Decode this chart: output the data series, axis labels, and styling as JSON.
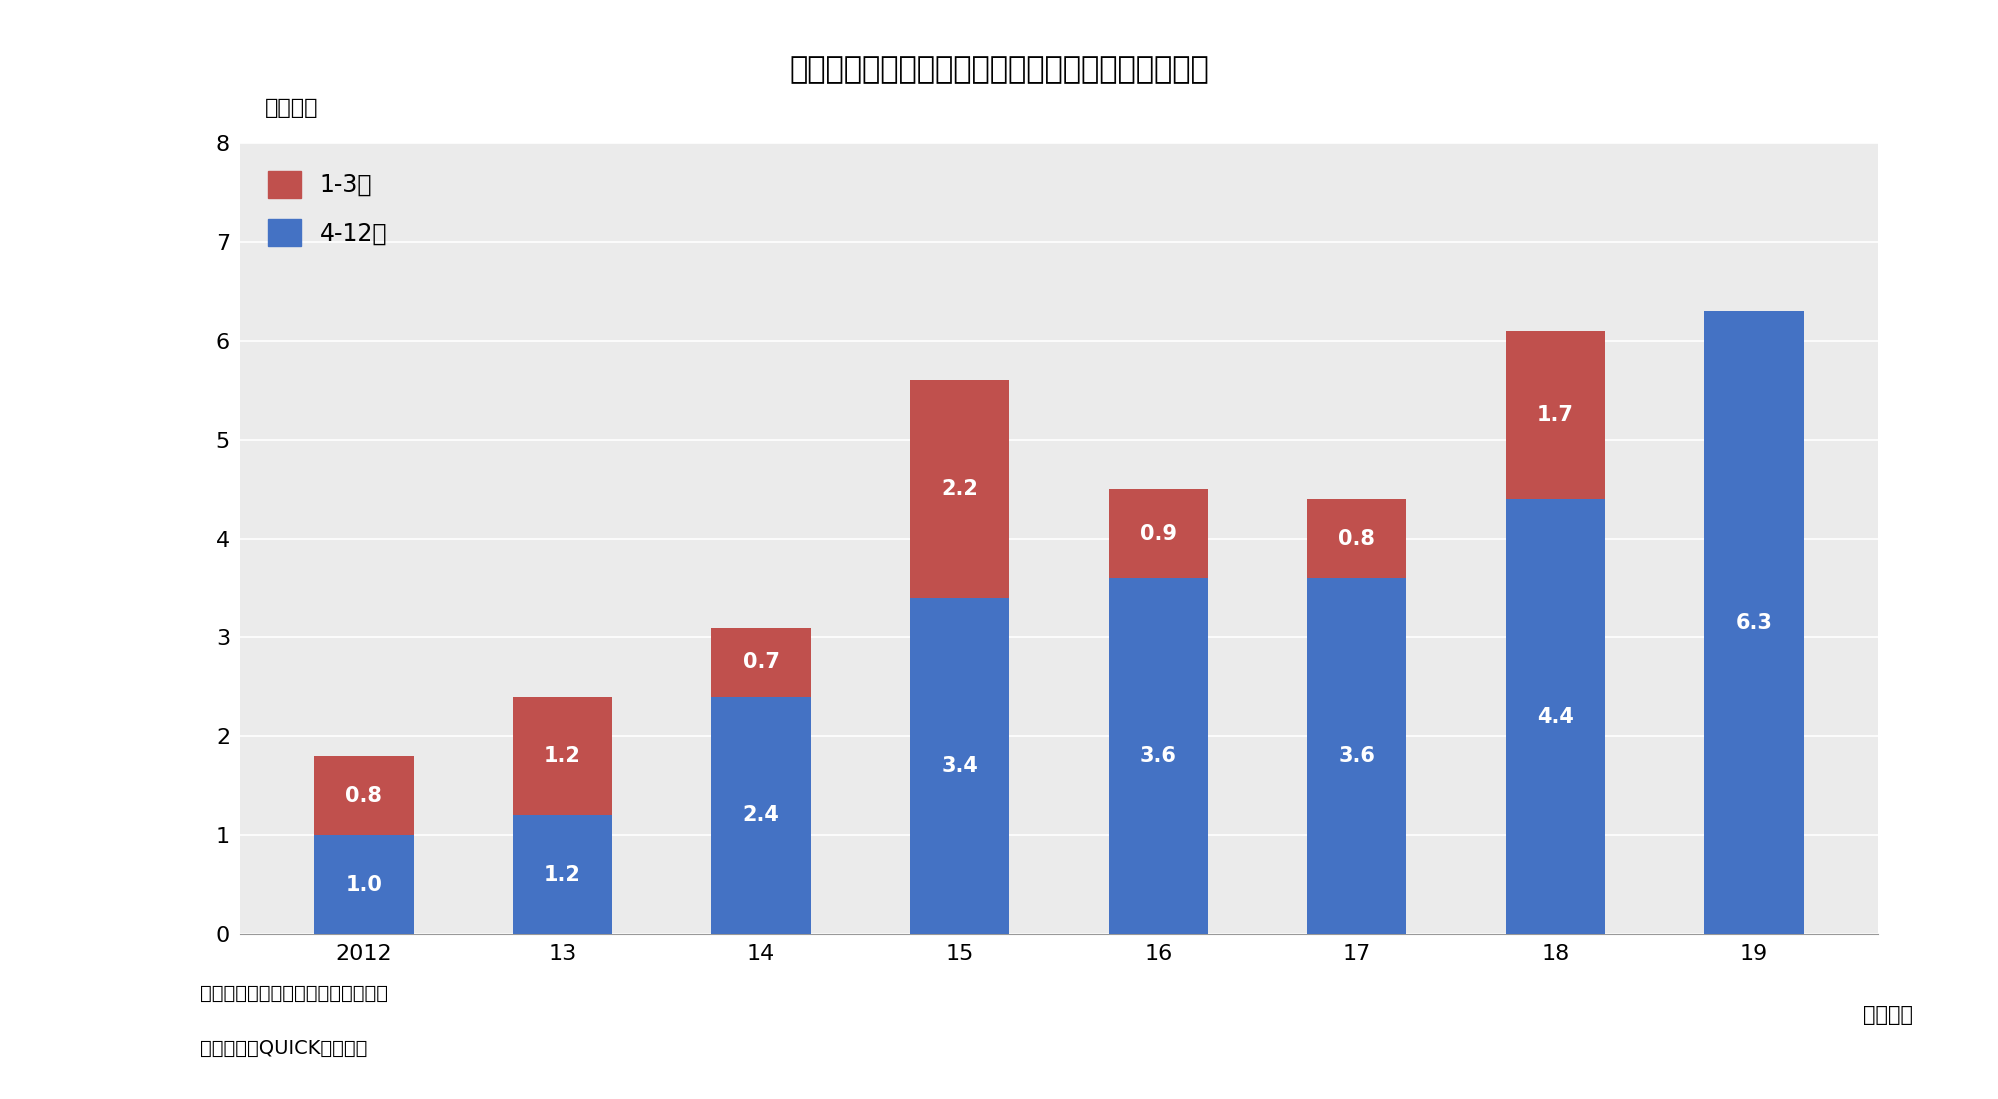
{
  "title": "》図表１》上場企楮の自社株買いが過去最高を更新",
  "ylabel": "（兆円）",
  "xlabel_suffix": "（年度）",
  "categories": [
    "2012",
    "13",
    "14",
    "15",
    "16",
    "17",
    "18",
    "19"
  ],
  "blue_values": [
    1.0,
    1.2,
    2.4,
    3.4,
    3.6,
    3.6,
    4.4,
    6.3
  ],
  "red_values": [
    0.8,
    1.2,
    0.7,
    2.2,
    0.9,
    0.8,
    1.7,
    0.0
  ],
  "blue_labels": [
    "1.0",
    "1.2",
    "2.4",
    "3.4",
    "3.6",
    "3.6",
    "4.4",
    "6.3"
  ],
  "red_labels": [
    "0.8",
    "1.2",
    "0.7",
    "2.2",
    "0.9",
    "0.8",
    "1.7",
    ""
  ],
  "blue_color": "#4472C4",
  "red_color": "#C0504D",
  "ylim": [
    0,
    8
  ],
  "yticks": [
    0,
    1,
    2,
    3,
    4,
    5,
    6,
    7,
    8
  ],
  "legend_label_red": "1-3月",
  "legend_label_blue": "4-12月",
  "note1": "（注）　東証１部、設定金額ベース",
  "note2": "（資料）　QUICKより作成",
  "title_fontsize": 22,
  "axis_fontsize": 16,
  "label_fontsize": 15,
  "note_fontsize": 14,
  "bar_width": 0.5,
  "background_color": "#ffffff",
  "plot_bg_color": "#ebebeb"
}
